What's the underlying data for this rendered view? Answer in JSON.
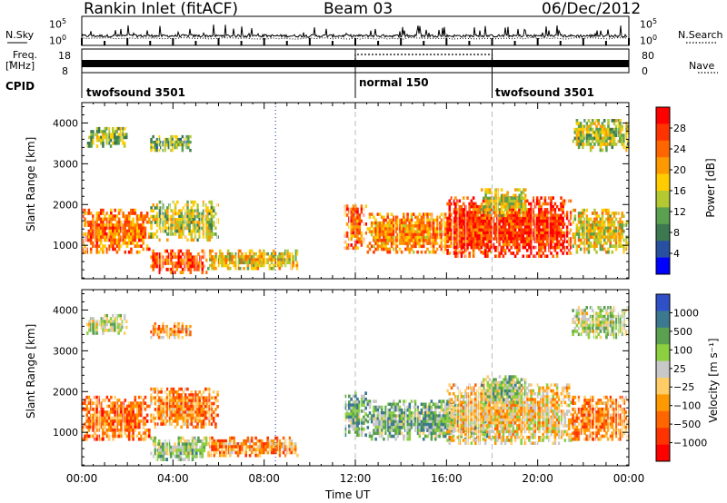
{
  "header": {
    "site": "Rankin Inlet (fitACF)",
    "beam": "Beam 03",
    "date": "06/Dec/2012"
  },
  "labels": {
    "nsky": "N.Sky",
    "nsearch": "N.Search",
    "freq_line1": "Freq.",
    "freq_line2": "[MHz]",
    "nave": "Nave",
    "cpid": "CPID",
    "noise_top": "10^5",
    "noise_bottom": "10^0",
    "noise_top_r": "10^5",
    "noise_bottom_r": "10^0",
    "freq_top": "18",
    "freq_bottom": "8",
    "nave_top": "80",
    "nave_bottom": "0"
  },
  "cpid_segments": [
    {
      "label": "twofsound 3501",
      "start_h": 0,
      "end_h": 12
    },
    {
      "label": "normal 150",
      "start_h": 12,
      "end_h": 18
    },
    {
      "label": "twofsound 3501",
      "start_h": 18,
      "end_h": 24
    }
  ],
  "chart_data": [
    {
      "type": "heatmap",
      "name": "power",
      "xlabel": "Time UT",
      "ylabel": "Slant Range [km]",
      "xlim": [
        0,
        24
      ],
      "ylim": [
        180,
        4500
      ],
      "x_ticks": [
        "00:00",
        "04:00",
        "08:00",
        "12:00",
        "16:00",
        "20:00",
        "00:00"
      ],
      "y_ticks": [
        1000,
        2000,
        3000,
        4000
      ],
      "colorbar": {
        "label": "Power [dB]",
        "ticks": [
          "28",
          "24",
          "20",
          "16",
          "12",
          "8",
          "4"
        ],
        "colors": [
          "#ff0000",
          "#ff3300",
          "#ff6600",
          "#ff9900",
          "#ffcc00",
          "#b4c832",
          "#5aa050",
          "#3c7850",
          "#2850a0",
          "#0000ff"
        ]
      },
      "regions": [
        {
          "t0": 0.0,
          "t1": 3.0,
          "r0": 800,
          "r1": 1900,
          "level": 0.75
        },
        {
          "t0": 3.0,
          "t1": 6.0,
          "r0": 1100,
          "r1": 2100,
          "level": 0.45
        },
        {
          "t0": 3.0,
          "t1": 5.5,
          "r0": 300,
          "r1": 900,
          "level": 0.85
        },
        {
          "t0": 5.5,
          "t1": 9.5,
          "r0": 400,
          "r1": 900,
          "level": 0.55
        },
        {
          "t0": 0.2,
          "t1": 2.0,
          "r0": 3400,
          "r1": 3900,
          "level": 0.4
        },
        {
          "t0": 3.0,
          "t1": 4.8,
          "r0": 3300,
          "r1": 3700,
          "level": 0.35
        },
        {
          "t0": 11.5,
          "t1": 12.5,
          "r0": 900,
          "r1": 2000,
          "level": 0.8
        },
        {
          "t0": 12.5,
          "t1": 18.0,
          "r0": 800,
          "r1": 1800,
          "level": 0.7
        },
        {
          "t0": 16.0,
          "t1": 21.5,
          "r0": 700,
          "r1": 2200,
          "level": 0.9
        },
        {
          "t0": 21.5,
          "t1": 24.0,
          "r0": 800,
          "r1": 1900,
          "level": 0.55
        },
        {
          "t0": 21.5,
          "t1": 24.0,
          "r0": 3300,
          "r1": 4100,
          "level": 0.45
        },
        {
          "t0": 17.5,
          "t1": 19.5,
          "r0": 1700,
          "r1": 2400,
          "level": 0.5
        }
      ]
    },
    {
      "type": "heatmap",
      "name": "velocity",
      "xlabel": "Time UT",
      "ylabel": "Slant Range [km]",
      "xlim": [
        0,
        24
      ],
      "ylim": [
        180,
        4500
      ],
      "x_ticks": [
        "00:00",
        "04:00",
        "08:00",
        "12:00",
        "16:00",
        "20:00",
        "00:00"
      ],
      "y_ticks": [
        1000,
        2000,
        3000,
        4000
      ],
      "colorbar": {
        "label": "Velocity [m s⁻¹]",
        "ticks": [
          "1000",
          "500",
          "100",
          "25",
          "−25",
          "−100",
          "−500",
          "−1000"
        ],
        "colors": [
          "#3050c8",
          "#3c7890",
          "#5aa050",
          "#8cd040",
          "#c8c8c8",
          "#ffcc66",
          "#ff9900",
          "#ff6600",
          "#ff3300",
          "#ff0000"
        ]
      },
      "regions": [
        {
          "t0": 0.0,
          "t1": 3.0,
          "r0": 800,
          "r1": 1900,
          "level": 0.25
        },
        {
          "t0": 3.0,
          "t1": 6.0,
          "r0": 1100,
          "r1": 2100,
          "level": 0.3
        },
        {
          "t0": 3.0,
          "t1": 5.5,
          "r0": 300,
          "r1": 900,
          "level": 0.65
        },
        {
          "t0": 5.5,
          "t1": 9.5,
          "r0": 400,
          "r1": 900,
          "level": 0.3
        },
        {
          "t0": 0.2,
          "t1": 2.0,
          "r0": 3400,
          "r1": 3900,
          "level": 0.6
        },
        {
          "t0": 3.0,
          "t1": 4.8,
          "r0": 3300,
          "r1": 3700,
          "level": 0.35
        },
        {
          "t0": 11.5,
          "t1": 12.5,
          "r0": 900,
          "r1": 2000,
          "level": 0.7
        },
        {
          "t0": 12.5,
          "t1": 18.0,
          "r0": 800,
          "r1": 1800,
          "level": 0.7
        },
        {
          "t0": 16.0,
          "t1": 21.5,
          "r0": 700,
          "r1": 2200,
          "level": 0.45
        },
        {
          "t0": 21.5,
          "t1": 24.0,
          "r0": 800,
          "r1": 1900,
          "level": 0.3
        },
        {
          "t0": 21.5,
          "t1": 24.0,
          "r0": 3300,
          "r1": 4100,
          "level": 0.6
        },
        {
          "t0": 17.5,
          "t1": 19.5,
          "r0": 1700,
          "r1": 2400,
          "level": 0.65
        }
      ]
    }
  ]
}
